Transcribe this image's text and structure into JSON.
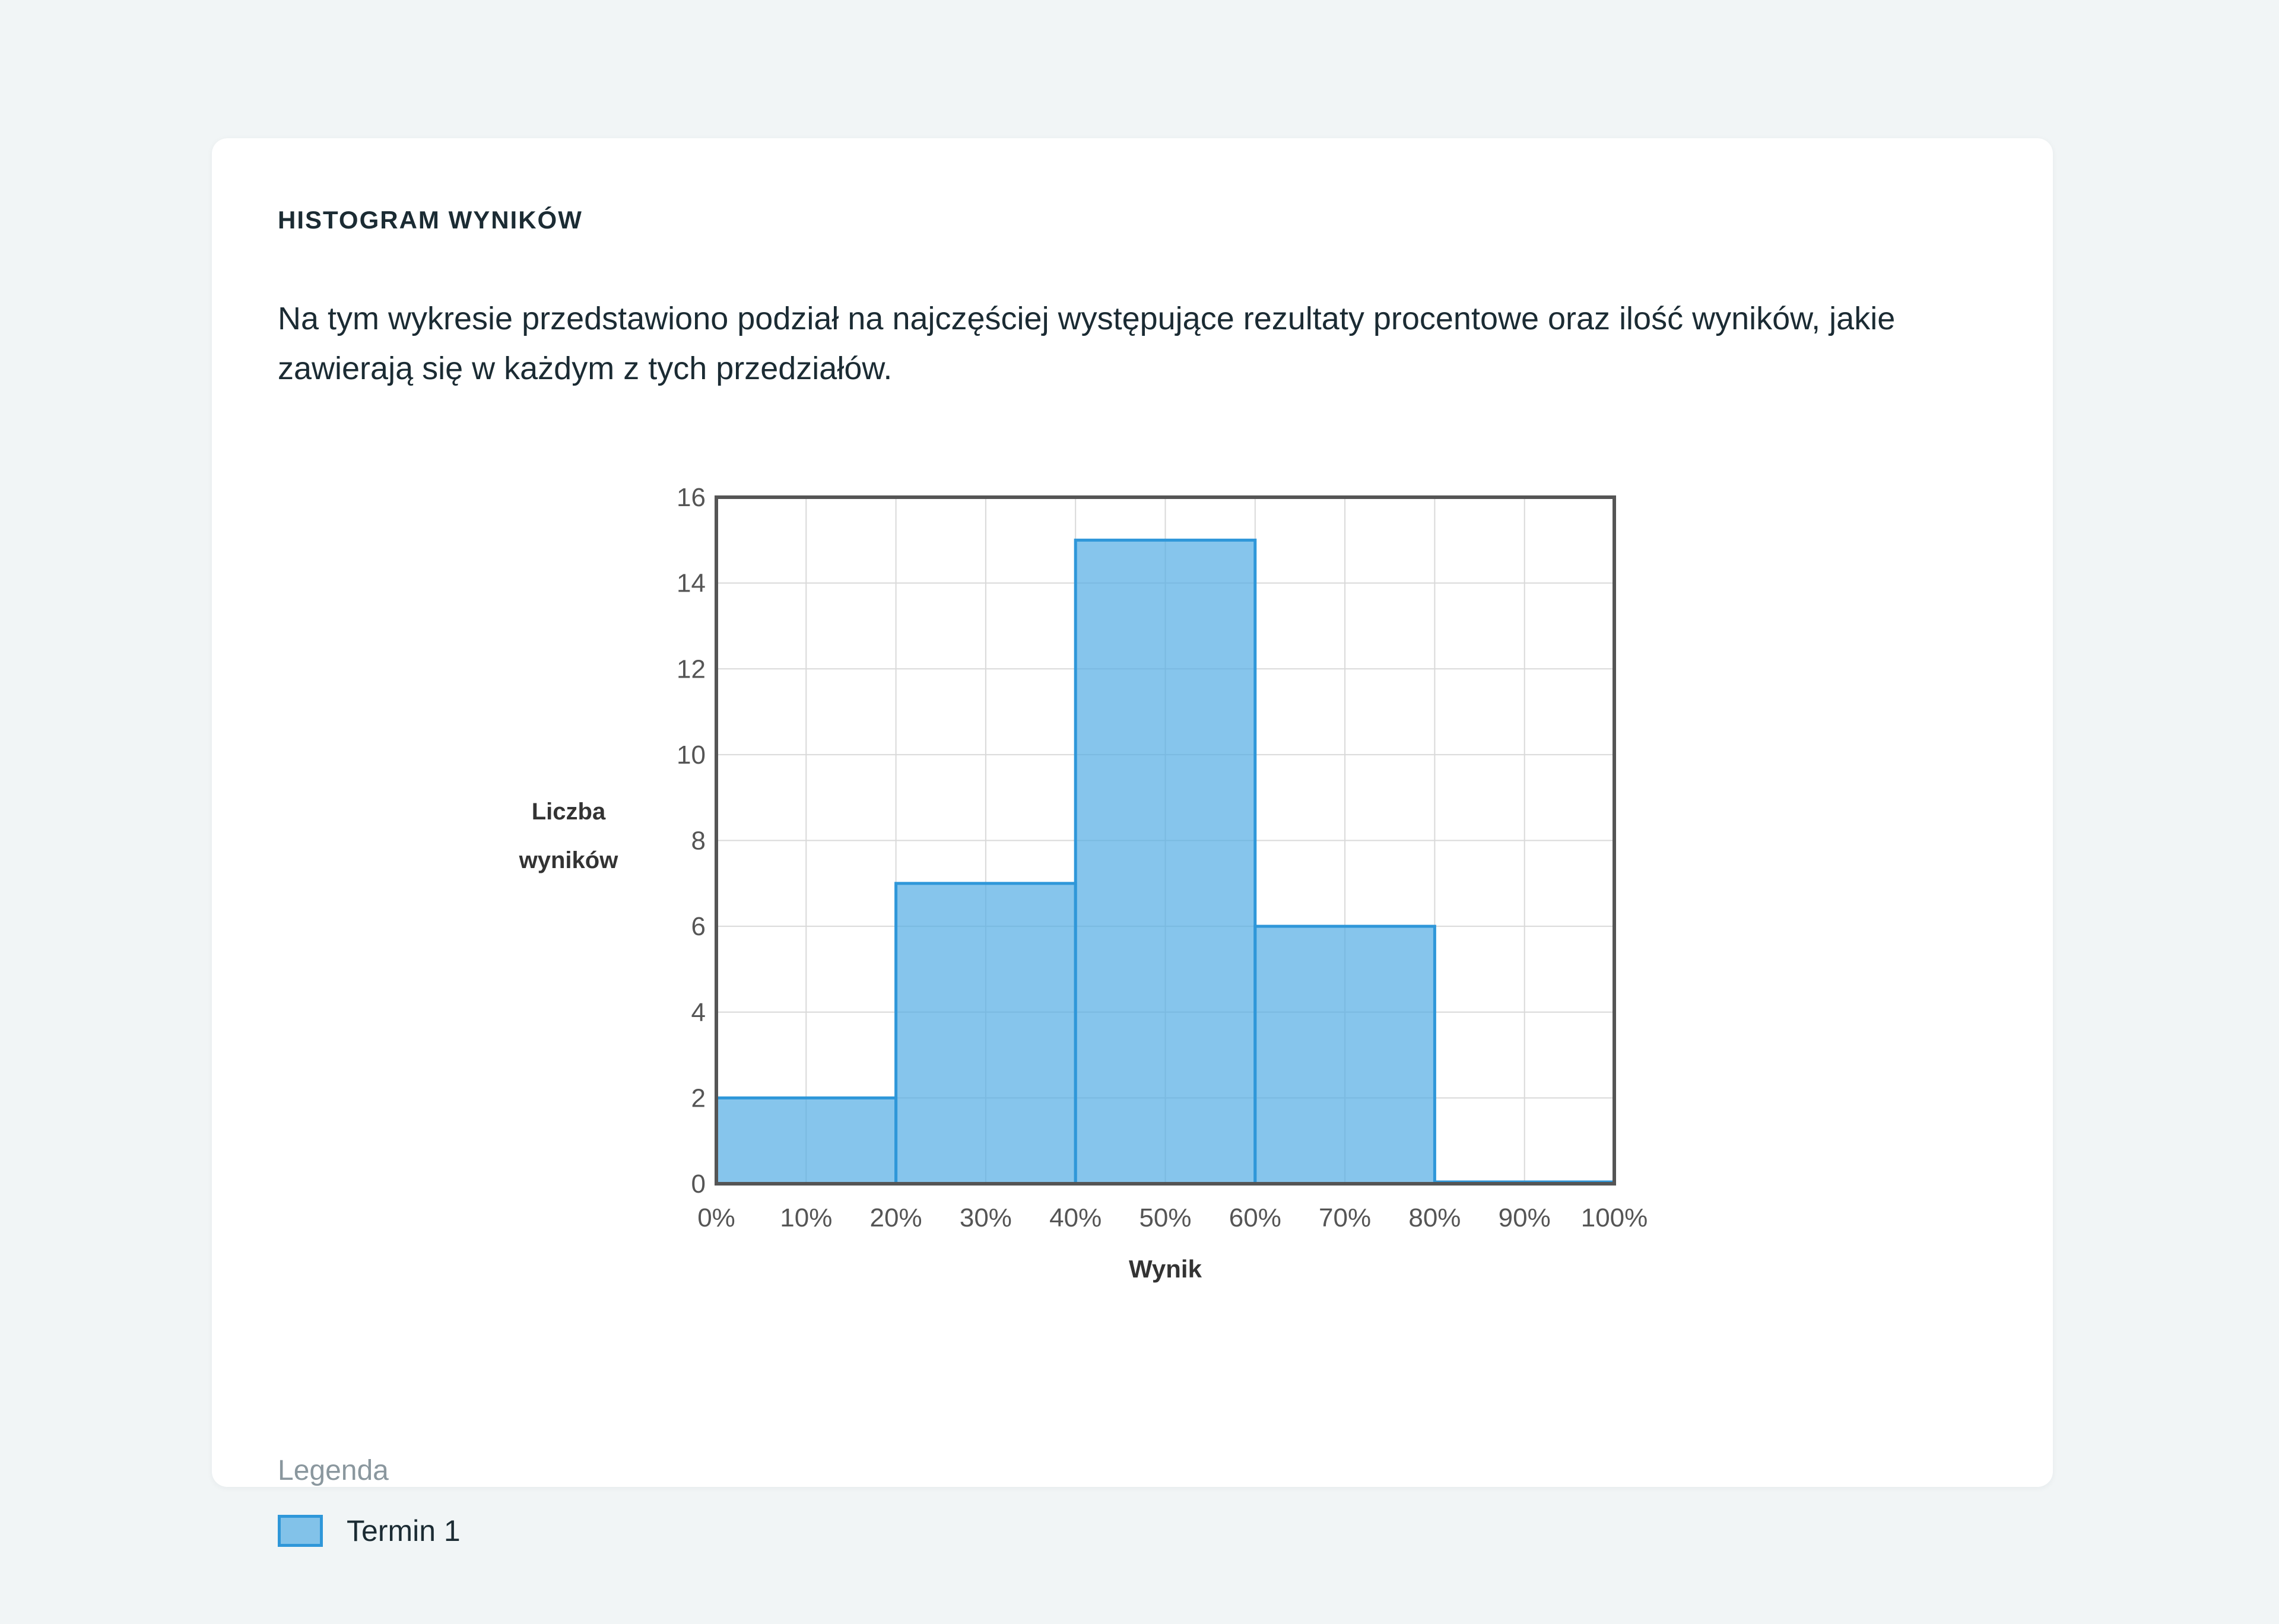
{
  "card": {
    "title": "HISTOGRAM WYNIKÓW",
    "description": "Na tym wykresie przedstawiono podział na najczęściej występujące rezultaty procentowe oraz ilość wyników, jakie zawierają się w każdym z tych przedziałów."
  },
  "legend": {
    "title": "Legenda"
  },
  "colors": {
    "background": "#f1f5f6",
    "card": "#ffffff",
    "bar_fill": "#52ace4",
    "bar_stroke": "#2f97d9",
    "axis": "#555555",
    "grid": "#d9d9d9",
    "text": "#1b2b33",
    "muted_text": "#8a979e"
  },
  "chart_data": {
    "type": "bar",
    "xlabel": "Wynik",
    "ylabel": "Liczba wyników",
    "ylabel_lines": [
      "Liczba",
      "wyników"
    ],
    "x_ticks": [
      "0%",
      "10%",
      "20%",
      "30%",
      "40%",
      "50%",
      "60%",
      "70%",
      "80%",
      "90%",
      "100%"
    ],
    "y_ticks": [
      "0",
      "2",
      "4",
      "6",
      "8",
      "10",
      "12",
      "14",
      "16"
    ],
    "xlim": [
      0,
      100
    ],
    "ylim": [
      0,
      16
    ],
    "grid": true,
    "legend_position": "bottom-left",
    "bins": [
      {
        "from": 0,
        "to": 20
      },
      {
        "from": 20,
        "to": 40
      },
      {
        "from": 40,
        "to": 60
      },
      {
        "from": 60,
        "to": 80
      },
      {
        "from": 80,
        "to": 100
      }
    ],
    "series": [
      {
        "name": "Termin 1",
        "values": [
          2,
          7,
          15,
          6,
          0
        ]
      }
    ]
  }
}
